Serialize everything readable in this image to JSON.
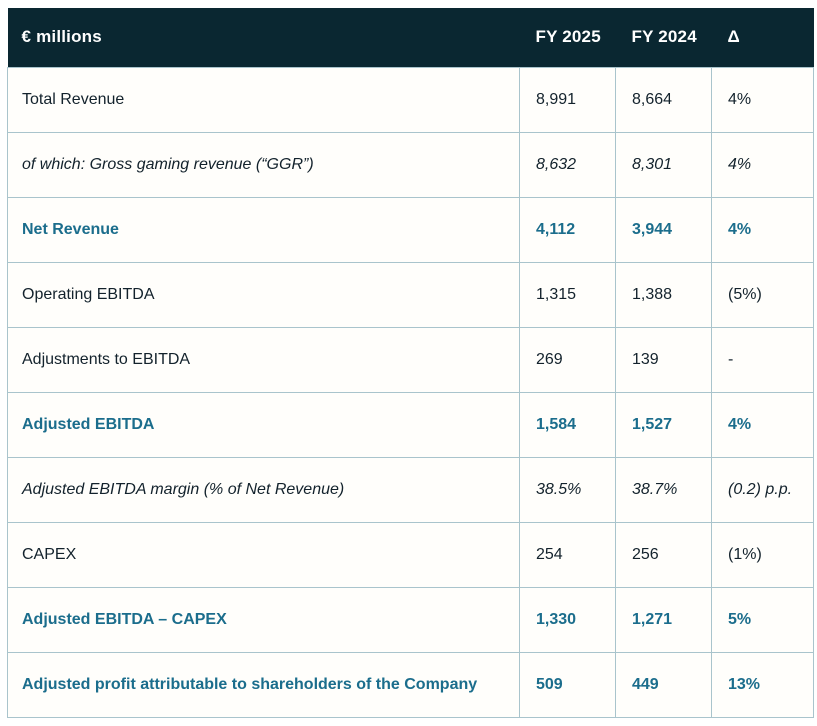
{
  "table": {
    "unit_label": "€ millions",
    "columns": [
      "FY 2025",
      "FY 2024",
      "Δ"
    ],
    "rows": [
      {
        "label": "Total Revenue",
        "fy2025": "8,991",
        "fy2024": "8,664",
        "delta": "4%",
        "style": "normal"
      },
      {
        "label": "of which: Gross gaming revenue (“GGR”)",
        "fy2025": "8,632",
        "fy2024": "8,301",
        "delta": "4%",
        "style": "italic"
      },
      {
        "label": "Net Revenue",
        "fy2025": "4,112",
        "fy2024": "3,944",
        "delta": "4%",
        "style": "accent"
      },
      {
        "label": "Operating EBITDA",
        "fy2025": "1,315",
        "fy2024": "1,388",
        "delta": "(5%)",
        "style": "normal"
      },
      {
        "label": "Adjustments to EBITDA",
        "fy2025": "269",
        "fy2024": "139",
        "delta": "-",
        "style": "normal"
      },
      {
        "label": "Adjusted EBITDA",
        "fy2025": "1,584",
        "fy2024": "1,527",
        "delta": "4%",
        "style": "accent"
      },
      {
        "label": "Adjusted EBITDA margin (% of Net Revenue)",
        "fy2025": "38.5%",
        "fy2024": "38.7%",
        "delta": "(0.2) p.p.",
        "style": "italic"
      },
      {
        "label": "CAPEX",
        "fy2025": "254",
        "fy2024": "256",
        "delta": "(1%)",
        "style": "normal"
      },
      {
        "label": "Adjusted EBITDA – CAPEX",
        "fy2025": "1,330",
        "fy2024": "1,271",
        "delta": "5%",
        "style": "accent"
      },
      {
        "label": "Adjusted profit attributable to shareholders of the Company",
        "fy2025": "509",
        "fy2024": "449",
        "delta": "13%",
        "style": "accent"
      }
    ]
  },
  "colors": {
    "header_background": "#0a2731",
    "header_text": "#ffffff",
    "body_text": "#13222c",
    "accent_text": "#1b6d8c",
    "cell_border": "#a9c4cc",
    "row_background": "#fffefb"
  }
}
